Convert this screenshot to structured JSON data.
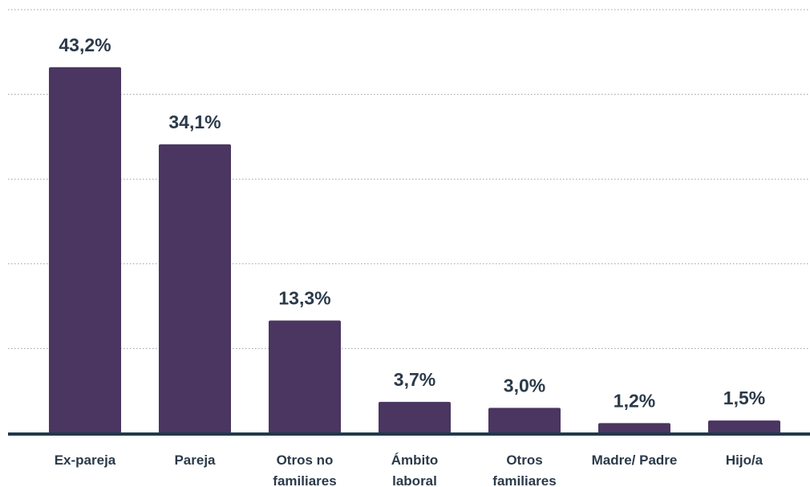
{
  "chart_data": {
    "type": "bar",
    "categories": [
      "Ex-pareja",
      "Pareja",
      "Otros no familiares",
      "Ámbito laboral",
      "Otros familiares",
      "Madre/ Padre",
      "Hijo/a"
    ],
    "values": [
      43.2,
      34.1,
      13.3,
      3.7,
      3.0,
      1.2,
      1.5
    ],
    "value_labels": [
      "43,2%",
      "34,1%",
      "13,3%",
      "3,7%",
      "3,0%",
      "1,2%",
      "1,5%"
    ],
    "color": "#4a3660",
    "ylim": [
      0,
      50
    ],
    "yticks": [
      0,
      10,
      20,
      30,
      40,
      50
    ],
    "grid": true
  }
}
